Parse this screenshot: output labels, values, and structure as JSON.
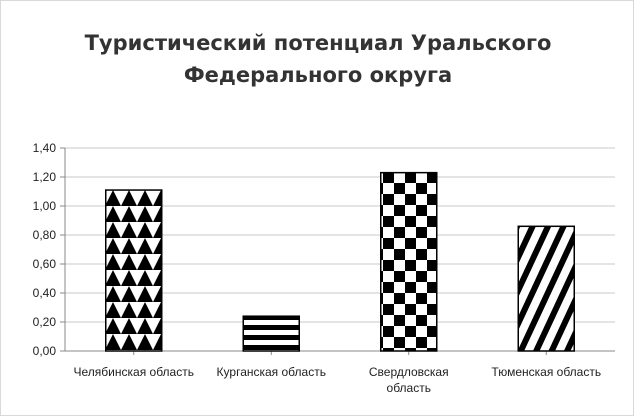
{
  "chart_data": {
    "type": "bar",
    "title": [
      "Туристический потенциал Уральского",
      "Федерального округа"
    ],
    "categories": [
      [
        "Челябинская область"
      ],
      [
        "Курганская область"
      ],
      [
        "Свердловская",
        "область"
      ],
      [
        "Тюменская область"
      ]
    ],
    "values": [
      1.11,
      0.24,
      1.23,
      0.86
    ],
    "patterns": [
      "triangles",
      "horizontal-stripes",
      "checkerboard",
      "diagonal-stripes"
    ],
    "ylim": [
      0,
      1.4
    ],
    "yticks": [
      "0,00",
      "0,20",
      "0,40",
      "0,60",
      "0,80",
      "1,00",
      "1,20",
      "1,40"
    ],
    "grid": true,
    "colors": {
      "bar_fill": "#000000",
      "bar_background": "#ffffff",
      "grid": "#c8c8c8",
      "axis": "#888888",
      "title": "#333333"
    }
  }
}
